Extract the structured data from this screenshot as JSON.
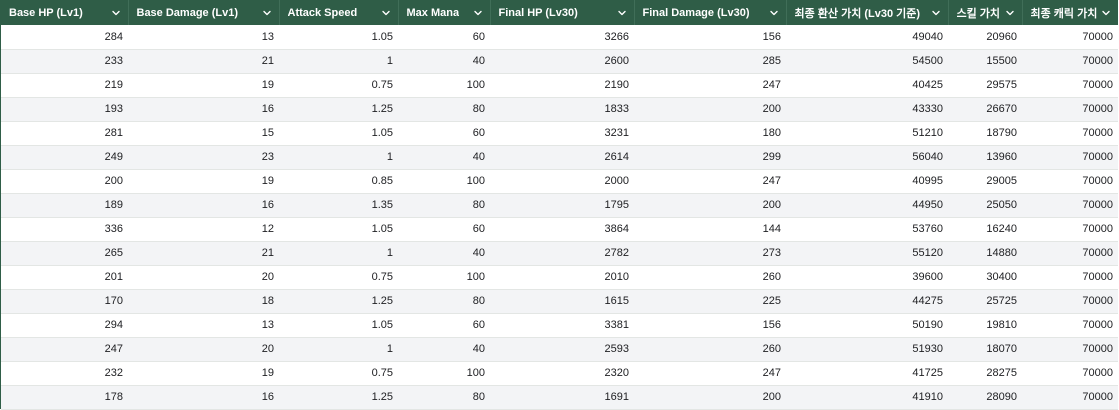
{
  "table": {
    "columns": [
      {
        "label": "Base HP (Lv1)",
        "icon": "chevron-down-icon"
      },
      {
        "label": "Base Damage (Lv1)",
        "icon": "chevron-down-icon"
      },
      {
        "label": "Attack Speed",
        "icon": "chevron-down-icon"
      },
      {
        "label": "Max Mana",
        "icon": "chevron-down-icon"
      },
      {
        "label": "Final HP (Lv30)",
        "icon": "chevron-down-icon"
      },
      {
        "label": "Final Damage (Lv30)",
        "icon": "chevron-down-icon"
      },
      {
        "label": "최종 환산 가치 (Lv30 기준)",
        "icon": "chevron-down-icon"
      },
      {
        "label": "스킬 가치",
        "icon": "chevron-down-icon"
      },
      {
        "label": "최종 캐릭 가치",
        "icon": "chevron-down-icon"
      }
    ],
    "rows": [
      [
        "284",
        "13",
        "1.05",
        "60",
        "3266",
        "156",
        "49040",
        "20960",
        "70000"
      ],
      [
        "233",
        "21",
        "1",
        "40",
        "2600",
        "285",
        "54500",
        "15500",
        "70000"
      ],
      [
        "219",
        "19",
        "0.75",
        "100",
        "2190",
        "247",
        "40425",
        "29575",
        "70000"
      ],
      [
        "193",
        "16",
        "1.25",
        "80",
        "1833",
        "200",
        "43330",
        "26670",
        "70000"
      ],
      [
        "281",
        "15",
        "1.05",
        "60",
        "3231",
        "180",
        "51210",
        "18790",
        "70000"
      ],
      [
        "249",
        "23",
        "1",
        "40",
        "2614",
        "299",
        "56040",
        "13960",
        "70000"
      ],
      [
        "200",
        "19",
        "0.85",
        "100",
        "2000",
        "247",
        "40995",
        "29005",
        "70000"
      ],
      [
        "189",
        "16",
        "1.35",
        "80",
        "1795",
        "200",
        "44950",
        "25050",
        "70000"
      ],
      [
        "336",
        "12",
        "1.05",
        "60",
        "3864",
        "144",
        "53760",
        "16240",
        "70000"
      ],
      [
        "265",
        "21",
        "1",
        "40",
        "2782",
        "273",
        "55120",
        "14880",
        "70000"
      ],
      [
        "201",
        "20",
        "0.75",
        "100",
        "2010",
        "260",
        "39600",
        "30400",
        "70000"
      ],
      [
        "170",
        "18",
        "1.25",
        "80",
        "1615",
        "225",
        "44275",
        "25725",
        "70000"
      ],
      [
        "294",
        "13",
        "1.05",
        "60",
        "3381",
        "156",
        "50190",
        "19810",
        "70000"
      ],
      [
        "247",
        "20",
        "1",
        "40",
        "2593",
        "260",
        "51930",
        "18070",
        "70000"
      ],
      [
        "232",
        "19",
        "0.75",
        "100",
        "2320",
        "247",
        "41725",
        "28275",
        "70000"
      ],
      [
        "178",
        "16",
        "1.25",
        "80",
        "1691",
        "200",
        "41910",
        "28090",
        "70000"
      ]
    ]
  },
  "colors": {
    "header_bg": "#2f5d47",
    "header_text": "#ffffff",
    "stripe": "#f3f4f6"
  }
}
